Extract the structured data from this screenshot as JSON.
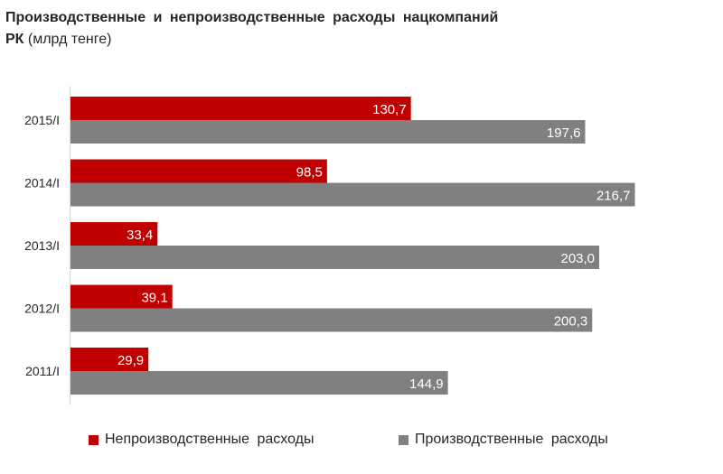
{
  "title": {
    "line1": "Производственные и непроизводственные расходы нацкомпаний",
    "line2_bold": "РК",
    "line2_rest": " (млрд тенге)"
  },
  "colors": {
    "non_production": "#c00000",
    "production": "#808080"
  },
  "chart_data": {
    "type": "bar",
    "orientation": "horizontal",
    "categories": [
      "2015/I",
      "2014/I",
      "2013/I",
      "2012/I",
      "2011/I"
    ],
    "series": [
      {
        "name": "Непроизводственные расходы",
        "values": [
          130.7,
          98.5,
          33.4,
          39.1,
          29.9
        ],
        "labels": [
          "130,7",
          "98,5",
          "33,4",
          "39,1",
          "29,9"
        ]
      },
      {
        "name": "Производственные расходы",
        "values": [
          197.6,
          216.7,
          203.0,
          200.3,
          144.9
        ],
        "labels": [
          "197,6",
          "216,7",
          "203,0",
          "200,3",
          "144,9"
        ]
      }
    ],
    "xlim": [
      0,
      230
    ],
    "grid": false,
    "legend_position": "bottom"
  }
}
